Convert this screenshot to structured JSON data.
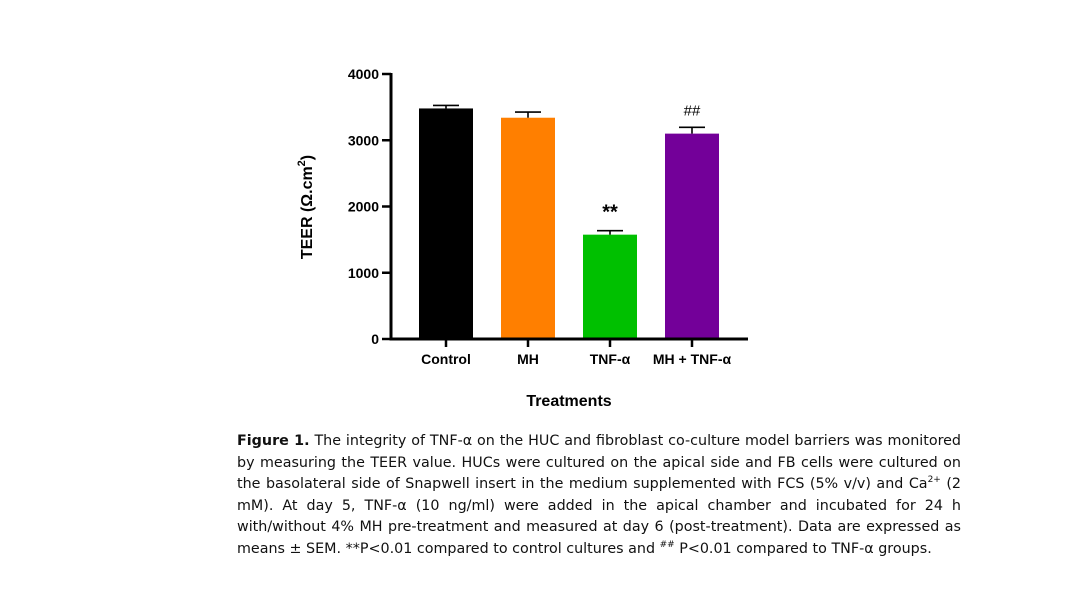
{
  "chart_data": {
    "type": "bar",
    "categories": [
      "Control",
      "MH",
      "TNF-α",
      "MH + TNF-α"
    ],
    "values": [
      3480,
      3340,
      1575,
      3100
    ],
    "errors": [
      45,
      85,
      60,
      95
    ],
    "colors": [
      "#000000",
      "#ff7f00",
      "#00c000",
      "#730099"
    ],
    "significance": [
      "",
      "",
      "**",
      "##"
    ],
    "xlabel": "Treatments",
    "ylabel_prefix": "TEER (Ω.cm",
    "ylabel_sup": "2",
    "ylabel_suffix": ")",
    "ylim": [
      0,
      4000
    ],
    "yticks": [
      0,
      1000,
      2000,
      3000,
      4000
    ],
    "ytick_labels": [
      "0",
      "1000",
      "2000",
      "3000",
      "4000"
    ],
    "grid": false
  },
  "caption": {
    "fig_label": "Figure 1.",
    "part1": " The integrity of TNF-α on the HUC and fibroblast co-culture model barriers was monitored by measuring the TEER value. HUCs were cultured on the apical side and FB cells were cultured on the basolateral side of Snapwell insert in the medium supplemented with FCS (5% v/v) and Ca",
    "sup1": "2+",
    "part2": " (2 mM). At day 5, TNF-α (10 ng/ml) were added in the apical chamber and incubated for 24 h with/without 4% MH pre-treatment and measured at day 6 (post-treatment). Data are expressed as means ± SEM. **P<0.01 compared to control cultures and ",
    "sup2": "##",
    "part3": " P<0.01 compared to TNF-α groups."
  }
}
